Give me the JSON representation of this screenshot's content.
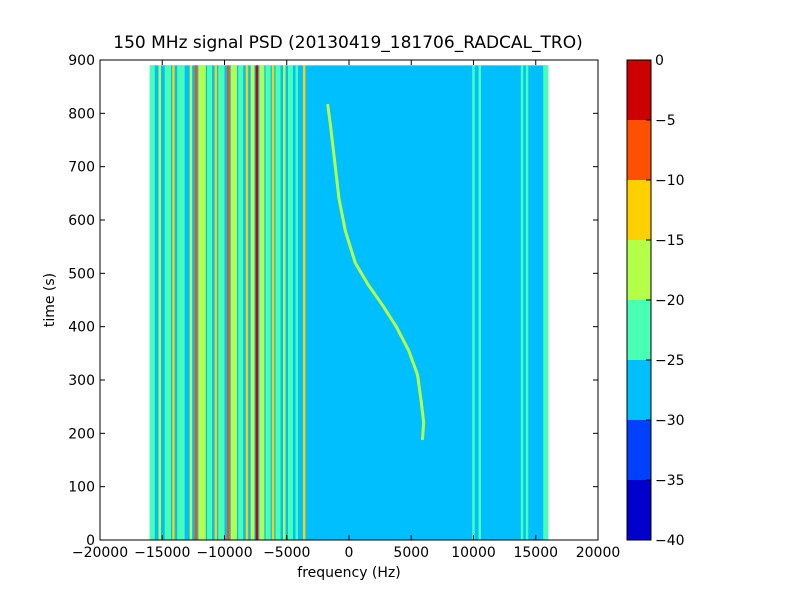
{
  "chart_data": {
    "type": "heatmap",
    "title": "150 MHz signal PSD (20130419_181706_RADCAL_TRO)",
    "xlabel": "frequency (Hz)",
    "ylabel": "time (s)",
    "xlim": [
      -20000,
      20000
    ],
    "ylim": [
      0,
      900
    ],
    "data_extent": {
      "x": [
        -16000,
        16000
      ],
      "y": [
        0,
        890
      ]
    },
    "x_ticks": [
      -20000,
      -15000,
      -10000,
      -5000,
      0,
      5000,
      10000,
      15000,
      20000
    ],
    "x_tick_labels": [
      "−20000",
      "−15000",
      "−10000",
      "−5000",
      "0",
      "5000",
      "10000",
      "15000",
      "20000"
    ],
    "y_ticks": [
      0,
      100,
      200,
      300,
      400,
      500,
      600,
      700,
      800,
      900
    ],
    "y_tick_labels": [
      "0",
      "100",
      "200",
      "300",
      "400",
      "500",
      "600",
      "700",
      "800",
      "900"
    ],
    "background_level": -27.5,
    "colorbar": {
      "levels": [
        -40,
        -35,
        -30,
        -25,
        -20,
        -15,
        -10,
        -5,
        0
      ],
      "tick_labels": [
        "−40",
        "−35",
        "−30",
        "−25",
        "−20",
        "−15",
        "−10",
        "−5",
        "0"
      ],
      "colors": [
        "#0000cc",
        "#0040ff",
        "#00bfff",
        "#48ffb4",
        "#b4ff48",
        "#ffd000",
        "#ff5000",
        "#cc0000"
      ]
    },
    "bands": [
      {
        "x0": -16000,
        "x1": -15600,
        "level": -22.5
      },
      {
        "x0": -15300,
        "x1": -15100,
        "level": -17.5
      },
      {
        "x0": -14800,
        "x1": -14300,
        "level": -22.5
      },
      {
        "x0": -14200,
        "x1": -14000,
        "level": -12.5
      },
      {
        "x0": -13800,
        "x1": -13200,
        "level": -22.5
      },
      {
        "x0": -12800,
        "x1": -12600,
        "level": -17.5
      },
      {
        "x0": -12400,
        "x1": -12200,
        "level": -7.5
      },
      {
        "x0": -12100,
        "x1": -11500,
        "level": -17.5
      },
      {
        "x0": -11400,
        "x1": -11000,
        "level": -22.5
      },
      {
        "x0": -10800,
        "x1": -10600,
        "level": -12.5
      },
      {
        "x0": -10500,
        "x1": -10000,
        "level": -22.5
      },
      {
        "x0": -9800,
        "x1": -9600,
        "level": -7.5
      },
      {
        "x0": -9500,
        "x1": -9000,
        "level": -17.5
      },
      {
        "x0": -8900,
        "x1": -8500,
        "level": -22.5
      },
      {
        "x0": -8300,
        "x1": -8100,
        "level": -12.5
      },
      {
        "x0": -7900,
        "x1": -7600,
        "level": -17.5
      },
      {
        "x0": -7500,
        "x1": -7300,
        "level": -2.5
      },
      {
        "x0": -7200,
        "x1": -6800,
        "level": -17.5
      },
      {
        "x0": -6700,
        "x1": -6300,
        "level": -22.5
      },
      {
        "x0": -6200,
        "x1": -6000,
        "level": -12.5
      },
      {
        "x0": -5900,
        "x1": -5500,
        "level": -22.5
      },
      {
        "x0": -5300,
        "x1": -5100,
        "level": -17.5
      },
      {
        "x0": -4900,
        "x1": -4500,
        "level": -22.5
      },
      {
        "x0": -4300,
        "x1": -4100,
        "level": -22.5
      },
      {
        "x0": -3700,
        "x1": -3500,
        "level": -12.5
      },
      {
        "x0": 9900,
        "x1": 10100,
        "level": -22.5
      },
      {
        "x0": 10400,
        "x1": 10600,
        "level": -22.5
      },
      {
        "x0": 13800,
        "x1": 14000,
        "level": -22.5
      },
      {
        "x0": 14200,
        "x1": 14400,
        "level": -22.5
      },
      {
        "x0": 15600,
        "x1": 16000,
        "level": -22.5
      }
    ],
    "trace": {
      "level": -17.5,
      "points": [
        [
          -1700,
          815
        ],
        [
          -1500,
          780
        ],
        [
          -1100,
          700
        ],
        [
          -800,
          640
        ],
        [
          -300,
          580
        ],
        [
          500,
          520
        ],
        [
          1500,
          480
        ],
        [
          2700,
          440
        ],
        [
          3800,
          400
        ],
        [
          4800,
          355
        ],
        [
          5500,
          310
        ],
        [
          5800,
          260
        ],
        [
          6000,
          220
        ],
        [
          5900,
          190
        ]
      ]
    }
  }
}
